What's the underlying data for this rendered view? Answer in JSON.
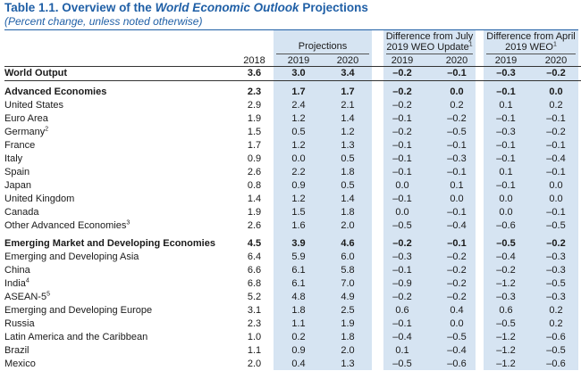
{
  "title": {
    "prefix": "Table 1.1. Overview of the ",
    "italic": "World Economic Outlook",
    "suffix": " Projections"
  },
  "subtitle": "(Percent change, unless noted otherwise)",
  "headers": {
    "projections": "Projections",
    "diff_july_line1": "Difference from July",
    "diff_july_line2": "2019 WEO Update",
    "diff_july_fn": "1",
    "diff_april_line1": "Difference from April",
    "diff_april_line2": "2019 WEO",
    "diff_april_fn": "1"
  },
  "years": [
    "2018",
    "2019",
    "2020",
    "2019",
    "2020",
    "2019",
    "2020"
  ],
  "rows": [
    {
      "label": "World Output",
      "fn": "",
      "values": [
        "3.6",
        "3.0",
        "3.4",
        "–0.2",
        "–0.1",
        "–0.3",
        "–0.2"
      ]
    },
    {
      "label": "Advanced Economies",
      "fn": "",
      "values": [
        "2.3",
        "1.7",
        "1.7",
        "–0.2",
        "0.0",
        "–0.1",
        "0.0"
      ]
    },
    {
      "label": "United States",
      "fn": "",
      "values": [
        "2.9",
        "2.4",
        "2.1",
        "–0.2",
        "0.2",
        "0.1",
        "0.2"
      ]
    },
    {
      "label": "Euro Area",
      "fn": "",
      "values": [
        "1.9",
        "1.2",
        "1.4",
        "–0.1",
        "–0.2",
        "–0.1",
        "–0.1"
      ]
    },
    {
      "label": "Germany",
      "fn": "2",
      "values": [
        "1.5",
        "0.5",
        "1.2",
        "–0.2",
        "–0.5",
        "–0.3",
        "–0.2"
      ]
    },
    {
      "label": "France",
      "fn": "",
      "values": [
        "1.7",
        "1.2",
        "1.3",
        "–0.1",
        "–0.1",
        "–0.1",
        "–0.1"
      ]
    },
    {
      "label": "Italy",
      "fn": "",
      "values": [
        "0.9",
        "0.0",
        "0.5",
        "–0.1",
        "–0.3",
        "–0.1",
        "–0.4"
      ]
    },
    {
      "label": "Spain",
      "fn": "",
      "values": [
        "2.6",
        "2.2",
        "1.8",
        "–0.1",
        "–0.1",
        "0.1",
        "–0.1"
      ]
    },
    {
      "label": "Japan",
      "fn": "",
      "values": [
        "0.8",
        "0.9",
        "0.5",
        "0.0",
        "0.1",
        "–0.1",
        "0.0"
      ]
    },
    {
      "label": "United Kingdom",
      "fn": "",
      "values": [
        "1.4",
        "1.2",
        "1.4",
        "–0.1",
        "0.0",
        "0.0",
        "0.0"
      ]
    },
    {
      "label": "Canada",
      "fn": "",
      "values": [
        "1.9",
        "1.5",
        "1.8",
        "0.0",
        "–0.1",
        "0.0",
        "–0.1"
      ]
    },
    {
      "label": "Other Advanced Economies",
      "fn": "3",
      "values": [
        "2.6",
        "1.6",
        "2.0",
        "–0.5",
        "–0.4",
        "–0.6",
        "–0.5"
      ]
    },
    {
      "label": "Emerging Market and Developing Economies",
      "fn": "",
      "values": [
        "4.5",
        "3.9",
        "4.6",
        "–0.2",
        "–0.1",
        "–0.5",
        "–0.2"
      ]
    },
    {
      "label": "Emerging and Developing Asia",
      "fn": "",
      "values": [
        "6.4",
        "5.9",
        "6.0",
        "–0.3",
        "–0.2",
        "–0.4",
        "–0.3"
      ]
    },
    {
      "label": "China",
      "fn": "",
      "values": [
        "6.6",
        "6.1",
        "5.8",
        "–0.1",
        "–0.2",
        "–0.2",
        "–0.3"
      ]
    },
    {
      "label": "India",
      "fn": "4",
      "values": [
        "6.8",
        "6.1",
        "7.0",
        "–0.9",
        "–0.2",
        "–1.2",
        "–0.5"
      ]
    },
    {
      "label": "ASEAN-5",
      "fn": "5",
      "values": [
        "5.2",
        "4.8",
        "4.9",
        "–0.2",
        "–0.2",
        "–0.3",
        "–0.3"
      ]
    },
    {
      "label": "Emerging and Developing Europe",
      "fn": "",
      "values": [
        "3.1",
        "1.8",
        "2.5",
        "0.6",
        "0.4",
        "0.6",
        "0.2"
      ]
    },
    {
      "label": "Russia",
      "fn": "",
      "values": [
        "2.3",
        "1.1",
        "1.9",
        "–0.1",
        "0.0",
        "–0.5",
        "0.2"
      ]
    },
    {
      "label": "Latin America and the Caribbean",
      "fn": "",
      "values": [
        "1.0",
        "0.2",
        "1.8",
        "–0.4",
        "–0.5",
        "–1.2",
        "–0.6"
      ]
    },
    {
      "label": "Brazil",
      "fn": "",
      "values": [
        "1.1",
        "0.9",
        "2.0",
        "0.1",
        "–0.4",
        "–1.2",
        "–0.5"
      ]
    },
    {
      "label": "Mexico",
      "fn": "",
      "values": [
        "2.0",
        "0.4",
        "1.3",
        "–0.5",
        "–0.6",
        "–1.2",
        "–0.6"
      ]
    }
  ],
  "colors": {
    "title": "#1f5fa6",
    "band": "#d6e4f2"
  }
}
